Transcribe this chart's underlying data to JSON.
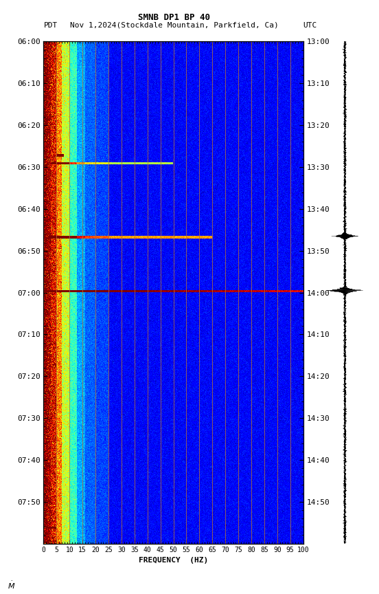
{
  "title_line1": "SMNB DP1 BP 40",
  "title_line2_left": "PDT",
  "title_line2_center": "Nov 1,2024(Stockdale Mountain, Parkfield, Ca)",
  "title_line2_right": "UTC",
  "xlabel": "FREQUENCY  (HZ)",
  "freq_ticks": [
    0,
    5,
    10,
    15,
    20,
    25,
    30,
    35,
    40,
    45,
    50,
    55,
    60,
    65,
    70,
    75,
    80,
    85,
    90,
    95,
    100
  ],
  "freq_min": 0,
  "freq_max": 100,
  "pdt_labels": [
    "06:00",
    "06:10",
    "06:20",
    "06:30",
    "06:40",
    "06:50",
    "07:00",
    "07:10",
    "07:20",
    "07:30",
    "07:40",
    "07:50"
  ],
  "utc_labels": [
    "13:00",
    "13:10",
    "13:20",
    "13:30",
    "13:40",
    "13:50",
    "14:00",
    "14:10",
    "14:20",
    "14:30",
    "14:40",
    "14:50"
  ],
  "bg_color": "white",
  "spectrogram_cmap": "jet",
  "vertical_line_color": "#b87030",
  "vertical_line_freq": [
    5,
    10,
    15,
    20,
    25,
    30,
    35,
    40,
    45,
    50,
    55,
    60,
    65,
    70,
    75,
    80,
    85,
    90,
    95,
    100
  ],
  "event1_time_min": 29.0,
  "event1_freq_max": 50,
  "event2_time_min": 46.5,
  "event2_freq_max": 65,
  "event3_time_min": 59.5,
  "event3_freq_max": 100
}
